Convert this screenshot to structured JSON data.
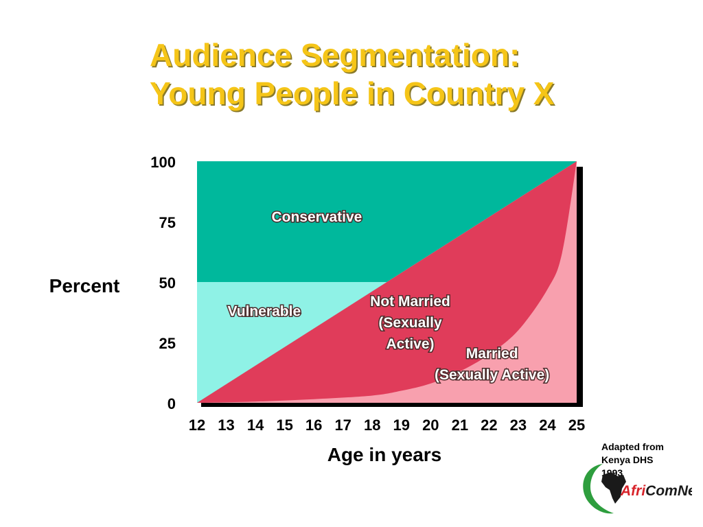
{
  "slide": {
    "title_line1": "Audience Segmentation:",
    "title_line2": "Young People in Country X",
    "source_line1": "Adapted from",
    "source_line2": "Kenya DHS",
    "source_line3": "1993",
    "logo_text": "AfriComNet",
    "logo_prefix": "Afri",
    "logo_suffix": "ComNet"
  },
  "chart_data": {
    "type": "area",
    "xlabel": "Age in years",
    "ylabel": "Percent",
    "x_ticks": [
      "12",
      "13",
      "14",
      "15",
      "16",
      "17",
      "18",
      "19",
      "20",
      "21",
      "22",
      "23",
      "24",
      "25"
    ],
    "y_ticks": [
      "0",
      "25",
      "50",
      "75",
      "100"
    ],
    "xlim": [
      12,
      25
    ],
    "ylim": [
      0,
      100
    ],
    "series": [
      {
        "name": "Married (Sexually Active)",
        "color": "#f8a0ae",
        "x": [
          12,
          14,
          16,
          18,
          19,
          20,
          21,
          22,
          23,
          24,
          24.5,
          25
        ],
        "y": [
          0,
          0.5,
          1.5,
          3,
          5,
          8,
          13,
          20,
          30,
          47,
          62,
          100
        ]
      },
      {
        "name": "Not Married (Sexually Active)",
        "color": "#e03c5a",
        "x": [
          12,
          25
        ],
        "y": [
          0,
          100
        ]
      },
      {
        "name": "Vulnerable",
        "color": "#8ff2e6",
        "x": [
          12,
          18.5
        ],
        "y": [
          50,
          50
        ]
      },
      {
        "name": "Conservative",
        "color": "#00b89c",
        "x": [
          12,
          25
        ],
        "y": [
          100,
          100
        ]
      }
    ],
    "region_labels": [
      {
        "lines": [
          "Conservative"
        ],
        "x": 16.1,
        "y": 75
      },
      {
        "lines": [
          "Vulnerable"
        ],
        "x": 14.3,
        "y": 36
      },
      {
        "lines": [
          "Not Married",
          "(Sexually",
          "Active)"
        ],
        "x": 19.3,
        "y": 40
      },
      {
        "lines": [
          "Married",
          "(Sexually Active)"
        ],
        "x": 22.1,
        "y": 18.5
      }
    ]
  }
}
